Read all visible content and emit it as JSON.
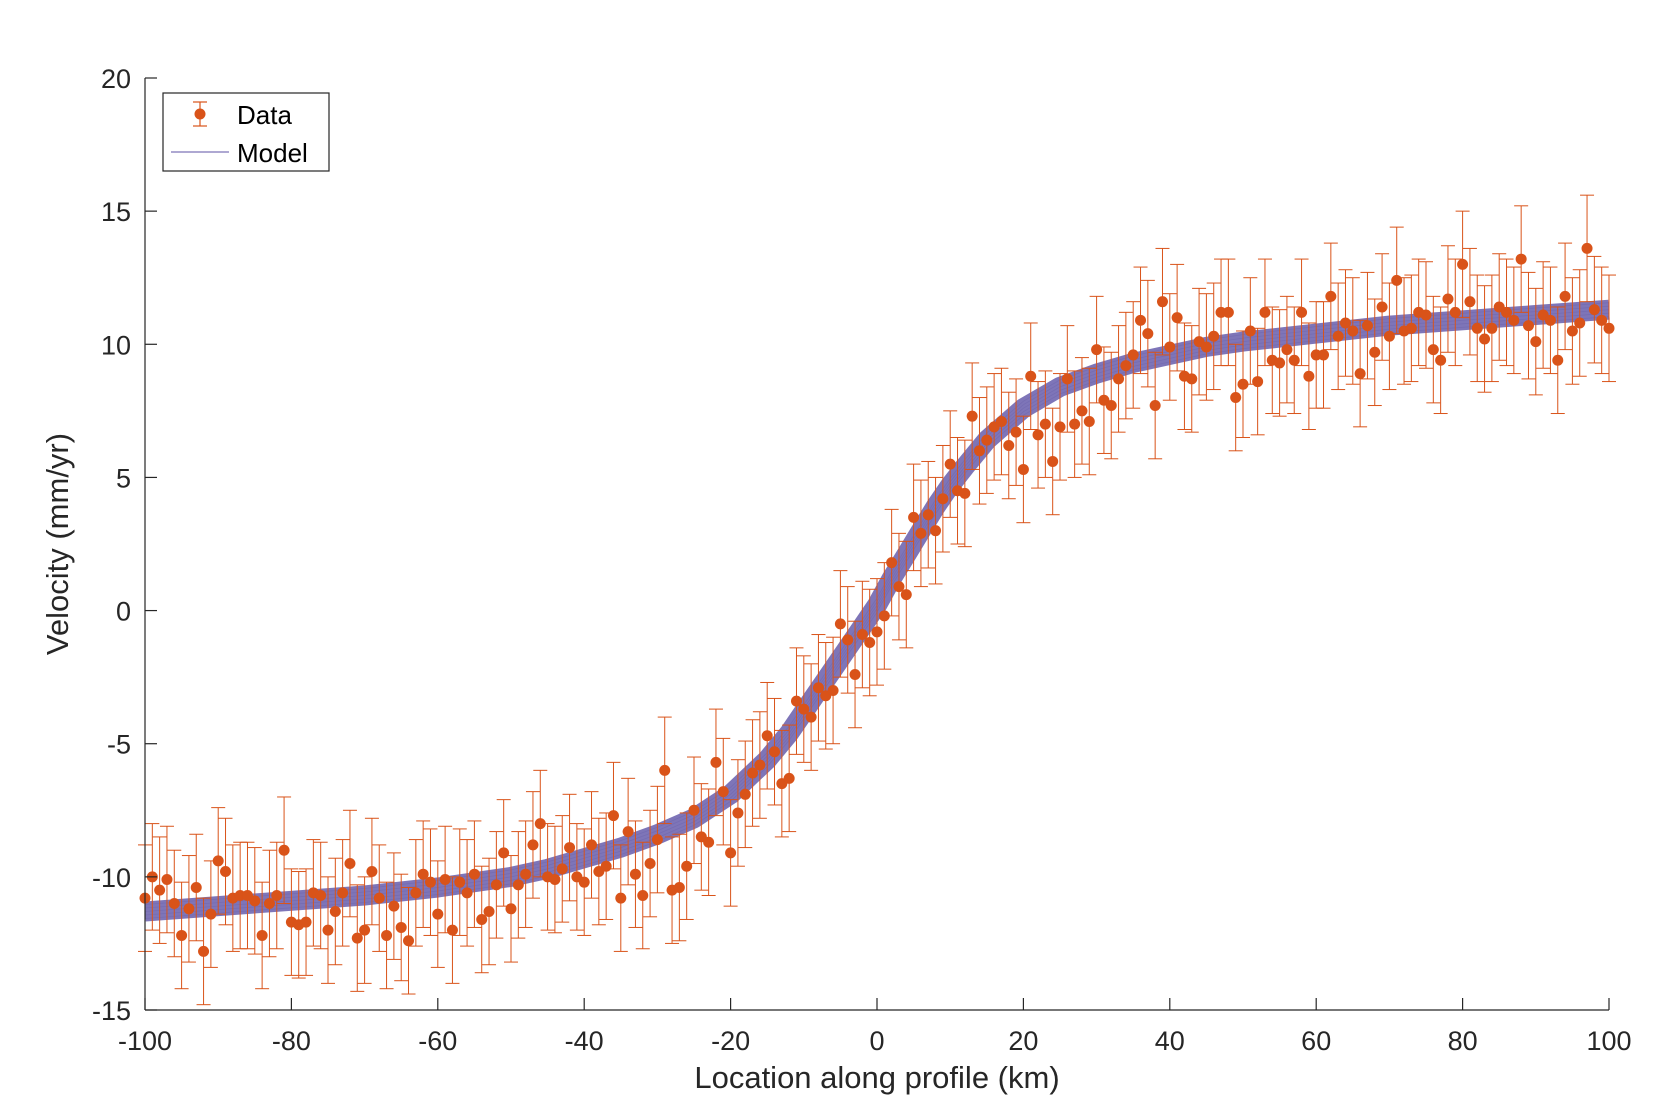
{
  "chart_data": {
    "type": "scatter",
    "xlabel": "Location along profile (km)",
    "ylabel": "Velocity (mm/yr)",
    "xlim": [
      -100,
      100
    ],
    "ylim": [
      -15,
      20
    ],
    "xticks": [
      -100,
      -80,
      -60,
      -40,
      -20,
      0,
      20,
      40,
      60,
      80,
      100
    ],
    "yticks": [
      -15,
      -10,
      -5,
      0,
      5,
      10,
      15,
      20
    ],
    "xtick_labels": [
      "-100",
      "-80",
      "-60",
      "-40",
      "-20",
      "0",
      "20",
      "40",
      "60",
      "80",
      "100"
    ],
    "ytick_labels": [
      "-15",
      "-10",
      "-5",
      "0",
      "5",
      "10",
      "15",
      "20"
    ],
    "grid": false,
    "legend": {
      "position": "top-left",
      "entries": [
        {
          "label": "Data",
          "marker": "errorbar-dot"
        },
        {
          "label": "Model",
          "marker": "line"
        }
      ]
    },
    "series": [
      {
        "name": "Data",
        "kind": "errorbar",
        "color": "#D95319",
        "error": 2.0,
        "x": [
          -100,
          -99,
          -98,
          -97,
          -96,
          -95,
          -94,
          -93,
          -92,
          -91,
          -90,
          -89,
          -88,
          -87,
          -86,
          -85,
          -84,
          -83,
          -82,
          -81,
          -80,
          -79,
          -78,
          -77,
          -76,
          -75,
          -74,
          -73,
          -72,
          -71,
          -70,
          -69,
          -68,
          -67,
          -66,
          -65,
          -64,
          -63,
          -62,
          -61,
          -60,
          -59,
          -58,
          -57,
          -56,
          -55,
          -54,
          -53,
          -52,
          -51,
          -50,
          -49,
          -48,
          -47,
          -46,
          -45,
          -44,
          -43,
          -42,
          -41,
          -40,
          -39,
          -38,
          -37,
          -36,
          -35,
          -34,
          -33,
          -32,
          -31,
          -30,
          -29,
          -28,
          -27,
          -26,
          -25,
          -24,
          -23,
          -22,
          -21,
          -20,
          -19,
          -18,
          -17,
          -16,
          -15,
          -14,
          -13,
          -12,
          -11,
          -10,
          -9,
          -8,
          -7,
          -6,
          -5,
          -4,
          -3,
          -2,
          -1,
          0,
          1,
          2,
          3,
          4,
          5,
          6,
          7,
          8,
          9,
          10,
          11,
          12,
          13,
          14,
          15,
          16,
          17,
          18,
          19,
          20,
          21,
          22,
          23,
          24,
          25,
          26,
          27,
          28,
          29,
          30,
          31,
          32,
          33,
          34,
          35,
          36,
          37,
          38,
          39,
          40,
          41,
          42,
          43,
          44,
          45,
          46,
          47,
          48,
          49,
          50,
          51,
          52,
          53,
          54,
          55,
          56,
          57,
          58,
          59,
          60,
          61,
          62,
          63,
          64,
          65,
          66,
          67,
          68,
          69,
          70,
          71,
          72,
          73,
          74,
          75,
          76,
          77,
          78,
          79,
          80,
          81,
          82,
          83,
          84,
          85,
          86,
          87,
          88,
          89,
          90,
          91,
          92,
          93,
          94,
          95,
          96,
          97,
          98,
          99,
          100
        ],
        "y": [
          -10.8,
          -10.0,
          -10.5,
          -10.1,
          -11.0,
          -12.2,
          -11.2,
          -10.4,
          -12.8,
          -11.4,
          -9.4,
          -9.8,
          -10.8,
          -10.7,
          -10.7,
          -10.9,
          -12.2,
          -11.0,
          -10.7,
          -9.0,
          -11.7,
          -11.8,
          -11.7,
          -10.6,
          -10.7,
          -12.0,
          -11.3,
          -10.6,
          -9.5,
          -12.3,
          -12.0,
          -9.8,
          -10.8,
          -12.2,
          -11.1,
          -11.9,
          -12.4,
          -10.6,
          -9.9,
          -10.2,
          -11.4,
          -10.1,
          -12.0,
          -10.2,
          -10.6,
          -9.9,
          -11.6,
          -11.3,
          -10.3,
          -9.1,
          -11.2,
          -10.3,
          -9.9,
          -8.8,
          -8.0,
          -10.0,
          -10.1,
          -9.7,
          -8.9,
          -10.0,
          -10.2,
          -8.8,
          -9.8,
          -9.6,
          -7.7,
          -10.8,
          -8.3,
          -9.9,
          -10.7,
          -9.5,
          -8.6,
          -6.0,
          -10.5,
          -10.4,
          -9.6,
          -7.5,
          -8.5,
          -8.7,
          -5.7,
          -6.8,
          -9.1,
          -7.6,
          -6.9,
          -6.1,
          -5.8,
          -4.7,
          -5.3,
          -6.5,
          -6.3,
          -3.4,
          -3.7,
          -4.0,
          -2.9,
          -3.2,
          -3.0,
          -0.5,
          -1.1,
          -2.4,
          -0.9,
          -1.2,
          -0.8,
          -0.2,
          1.8,
          0.9,
          0.6,
          3.5,
          2.9,
          3.6,
          3.0,
          4.2,
          5.5,
          4.5,
          4.4,
          7.3,
          6.0,
          6.4,
          6.9,
          7.1,
          6.2,
          6.7,
          5.3,
          8.8,
          6.6,
          7.0,
          5.6,
          6.9,
          8.7,
          7.0,
          7.5,
          7.1,
          9.8,
          7.9,
          7.7,
          8.7,
          9.2,
          9.6,
          10.9,
          10.4,
          7.7,
          11.6,
          9.9,
          11.0,
          8.8,
          8.7,
          10.1,
          9.9,
          10.3,
          11.2,
          11.2,
          8.0,
          8.5,
          10.5,
          8.6,
          11.2,
          9.4,
          9.3,
          9.8,
          9.4,
          11.2,
          8.8,
          9.6,
          9.6,
          11.8,
          10.3,
          10.8,
          10.5,
          8.9,
          10.7,
          9.7,
          11.4,
          10.3,
          12.4,
          10.5,
          10.6,
          11.2,
          11.1,
          9.8,
          9.4,
          11.7,
          11.2,
          13.0,
          11.6,
          10.6,
          10.2,
          10.6,
          11.4,
          11.2,
          10.9,
          13.2,
          10.7,
          10.1,
          11.1,
          10.9,
          9.4,
          11.8,
          10.5,
          10.8,
          13.6,
          11.3,
          10.9,
          10.6
        ]
      },
      {
        "name": "Model",
        "kind": "line-ensemble",
        "color": "#7E75B8",
        "x": [
          -100,
          -90,
          -80,
          -70,
          -60,
          -50,
          -45,
          -40,
          -35,
          -30,
          -25,
          -20,
          -15,
          -12,
          -10,
          -8,
          -6,
          -4,
          -2,
          0,
          2,
          4,
          6,
          8,
          10,
          12,
          15,
          20,
          25,
          30,
          35,
          40,
          45,
          50,
          60,
          70,
          80,
          90,
          100
        ],
        "y": [
          -11.3,
          -11.1,
          -10.9,
          -10.7,
          -10.4,
          -10.0,
          -9.7,
          -9.3,
          -8.9,
          -8.4,
          -7.8,
          -6.9,
          -5.6,
          -4.6,
          -3.8,
          -3.0,
          -2.2,
          -1.4,
          -0.6,
          0.2,
          1.2,
          2.1,
          3.0,
          3.9,
          4.7,
          5.4,
          6.4,
          7.6,
          8.4,
          8.9,
          9.3,
          9.6,
          9.9,
          10.1,
          10.4,
          10.7,
          10.9,
          11.1,
          11.3
        ]
      }
    ]
  }
}
